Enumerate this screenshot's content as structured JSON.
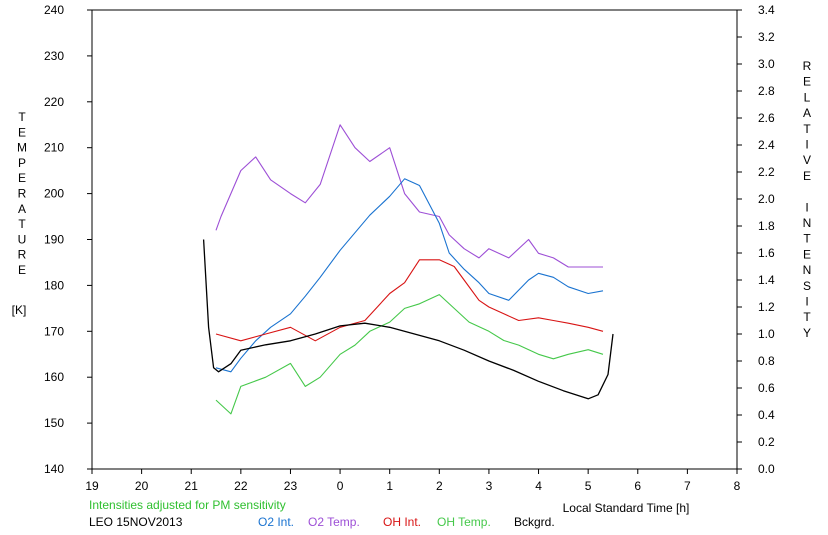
{
  "chart_data": {
    "type": "line",
    "ylabel_left_letters": [
      "T",
      "E",
      "M",
      "P",
      "E",
      "R",
      "A",
      "T",
      "U",
      "R",
      "E"
    ],
    "ylabel_left_unit": "[K]",
    "ylabel_right_letters": [
      "R",
      "E",
      "L",
      "A",
      "T",
      "I",
      "V",
      "E",
      "",
      "I",
      "N",
      "T",
      "E",
      "N",
      "S",
      "I",
      "T",
      "Y"
    ],
    "xlabel": "Local Standard Time [h]",
    "x_ticks": [
      "19",
      "20",
      "21",
      "22",
      "23",
      "0",
      "1",
      "2",
      "3",
      "4",
      "5",
      "6",
      "7",
      "8"
    ],
    "xlim": [
      19,
      32
    ],
    "ylim_left": [
      140,
      240
    ],
    "y_ticks_left": [
      "140",
      "150",
      "160",
      "170",
      "180",
      "190",
      "200",
      "210",
      "220",
      "230",
      "240"
    ],
    "ylim_right": [
      0,
      3.4
    ],
    "y_ticks_right": [
      "0.0",
      "0.2",
      "0.4",
      "0.6",
      "0.8",
      "1.0",
      "1.2",
      "1.4",
      "1.6",
      "1.8",
      "2.0",
      "2.2",
      "2.4",
      "2.6",
      "2.8",
      "3.0",
      "3.2",
      "3.4"
    ],
    "grid": false,
    "note": "Intensities adjusted for PM sensitivity",
    "station_date": "LEO 15NOV2013",
    "colors": {
      "o2_int": "#1a73d0",
      "o2_temp": "#9d4fd6",
      "oh_int": "#d81414",
      "oh_temp": "#45c84a",
      "bckgrd": "#000000",
      "note": "#30c030"
    },
    "series": [
      {
        "name": "O2 Int.",
        "axis": "right",
        "x": [
          21.5,
          21.8,
          22.0,
          22.3,
          22.6,
          23.0,
          23.3,
          23.6,
          24.0,
          24.3,
          24.6,
          25.0,
          25.3,
          25.6,
          26.0,
          26.2,
          26.5,
          26.8,
          27.0,
          27.4,
          27.8,
          28.0,
          28.3,
          28.6,
          29.0,
          29.3
        ],
        "y": [
          0.75,
          0.72,
          0.82,
          0.95,
          1.05,
          1.15,
          1.28,
          1.42,
          1.62,
          1.75,
          1.88,
          2.02,
          2.15,
          2.1,
          1.82,
          1.6,
          1.48,
          1.38,
          1.3,
          1.25,
          1.4,
          1.45,
          1.42,
          1.35,
          1.3,
          1.32
        ]
      },
      {
        "name": "O2 Temp.",
        "axis": "left",
        "x": [
          21.5,
          21.6,
          22.0,
          22.3,
          22.6,
          23.0,
          23.3,
          23.6,
          24.0,
          24.3,
          24.6,
          25.0,
          25.3,
          25.6,
          26.0,
          26.2,
          26.5,
          26.8,
          27.0,
          27.4,
          27.8,
          28.0,
          28.3,
          28.6,
          29.0,
          29.3
        ],
        "y": [
          192,
          195,
          205,
          208,
          203,
          200,
          198,
          202,
          215,
          210,
          207,
          210,
          200,
          196,
          195,
          191,
          188,
          186,
          188,
          186,
          190,
          187,
          186,
          184,
          184,
          184
        ]
      },
      {
        "name": "OH Int.",
        "axis": "right",
        "x": [
          21.5,
          22.0,
          22.5,
          23.0,
          23.5,
          24.0,
          24.5,
          25.0,
          25.3,
          25.6,
          26.0,
          26.3,
          26.5,
          26.8,
          27.0,
          27.3,
          27.6,
          28.0,
          28.3,
          28.6,
          29.0,
          29.3
        ],
        "y": [
          1.0,
          0.95,
          1.0,
          1.05,
          0.95,
          1.05,
          1.1,
          1.3,
          1.38,
          1.55,
          1.55,
          1.5,
          1.4,
          1.25,
          1.2,
          1.15,
          1.1,
          1.12,
          1.1,
          1.08,
          1.05,
          1.02
        ]
      },
      {
        "name": "OH Temp.",
        "axis": "left",
        "x": [
          21.5,
          21.8,
          22.0,
          22.5,
          23.0,
          23.3,
          23.6,
          24.0,
          24.3,
          24.6,
          25.0,
          25.3,
          25.6,
          26.0,
          26.3,
          26.6,
          27.0,
          27.3,
          27.6,
          28.0,
          28.3,
          28.6,
          29.0,
          29.3
        ],
        "y": [
          155,
          152,
          158,
          160,
          163,
          158,
          160,
          165,
          167,
          170,
          172,
          175,
          176,
          178,
          175,
          172,
          170,
          168,
          167,
          165,
          164,
          165,
          166,
          165
        ]
      },
      {
        "name": "Bckgrd.",
        "axis": "right",
        "x": [
          21.25,
          21.35,
          21.45,
          21.55,
          21.8,
          22.0,
          22.5,
          23.0,
          23.5,
          24.0,
          24.5,
          25.0,
          25.5,
          26.0,
          26.5,
          27.0,
          27.5,
          28.0,
          28.5,
          29.0,
          29.2,
          29.4,
          29.5
        ],
        "y": [
          1.7,
          1.05,
          0.75,
          0.72,
          0.78,
          0.88,
          0.92,
          0.95,
          1.0,
          1.06,
          1.08,
          1.05,
          1.0,
          0.95,
          0.88,
          0.8,
          0.73,
          0.65,
          0.58,
          0.52,
          0.55,
          0.7,
          1.0
        ]
      }
    ]
  }
}
